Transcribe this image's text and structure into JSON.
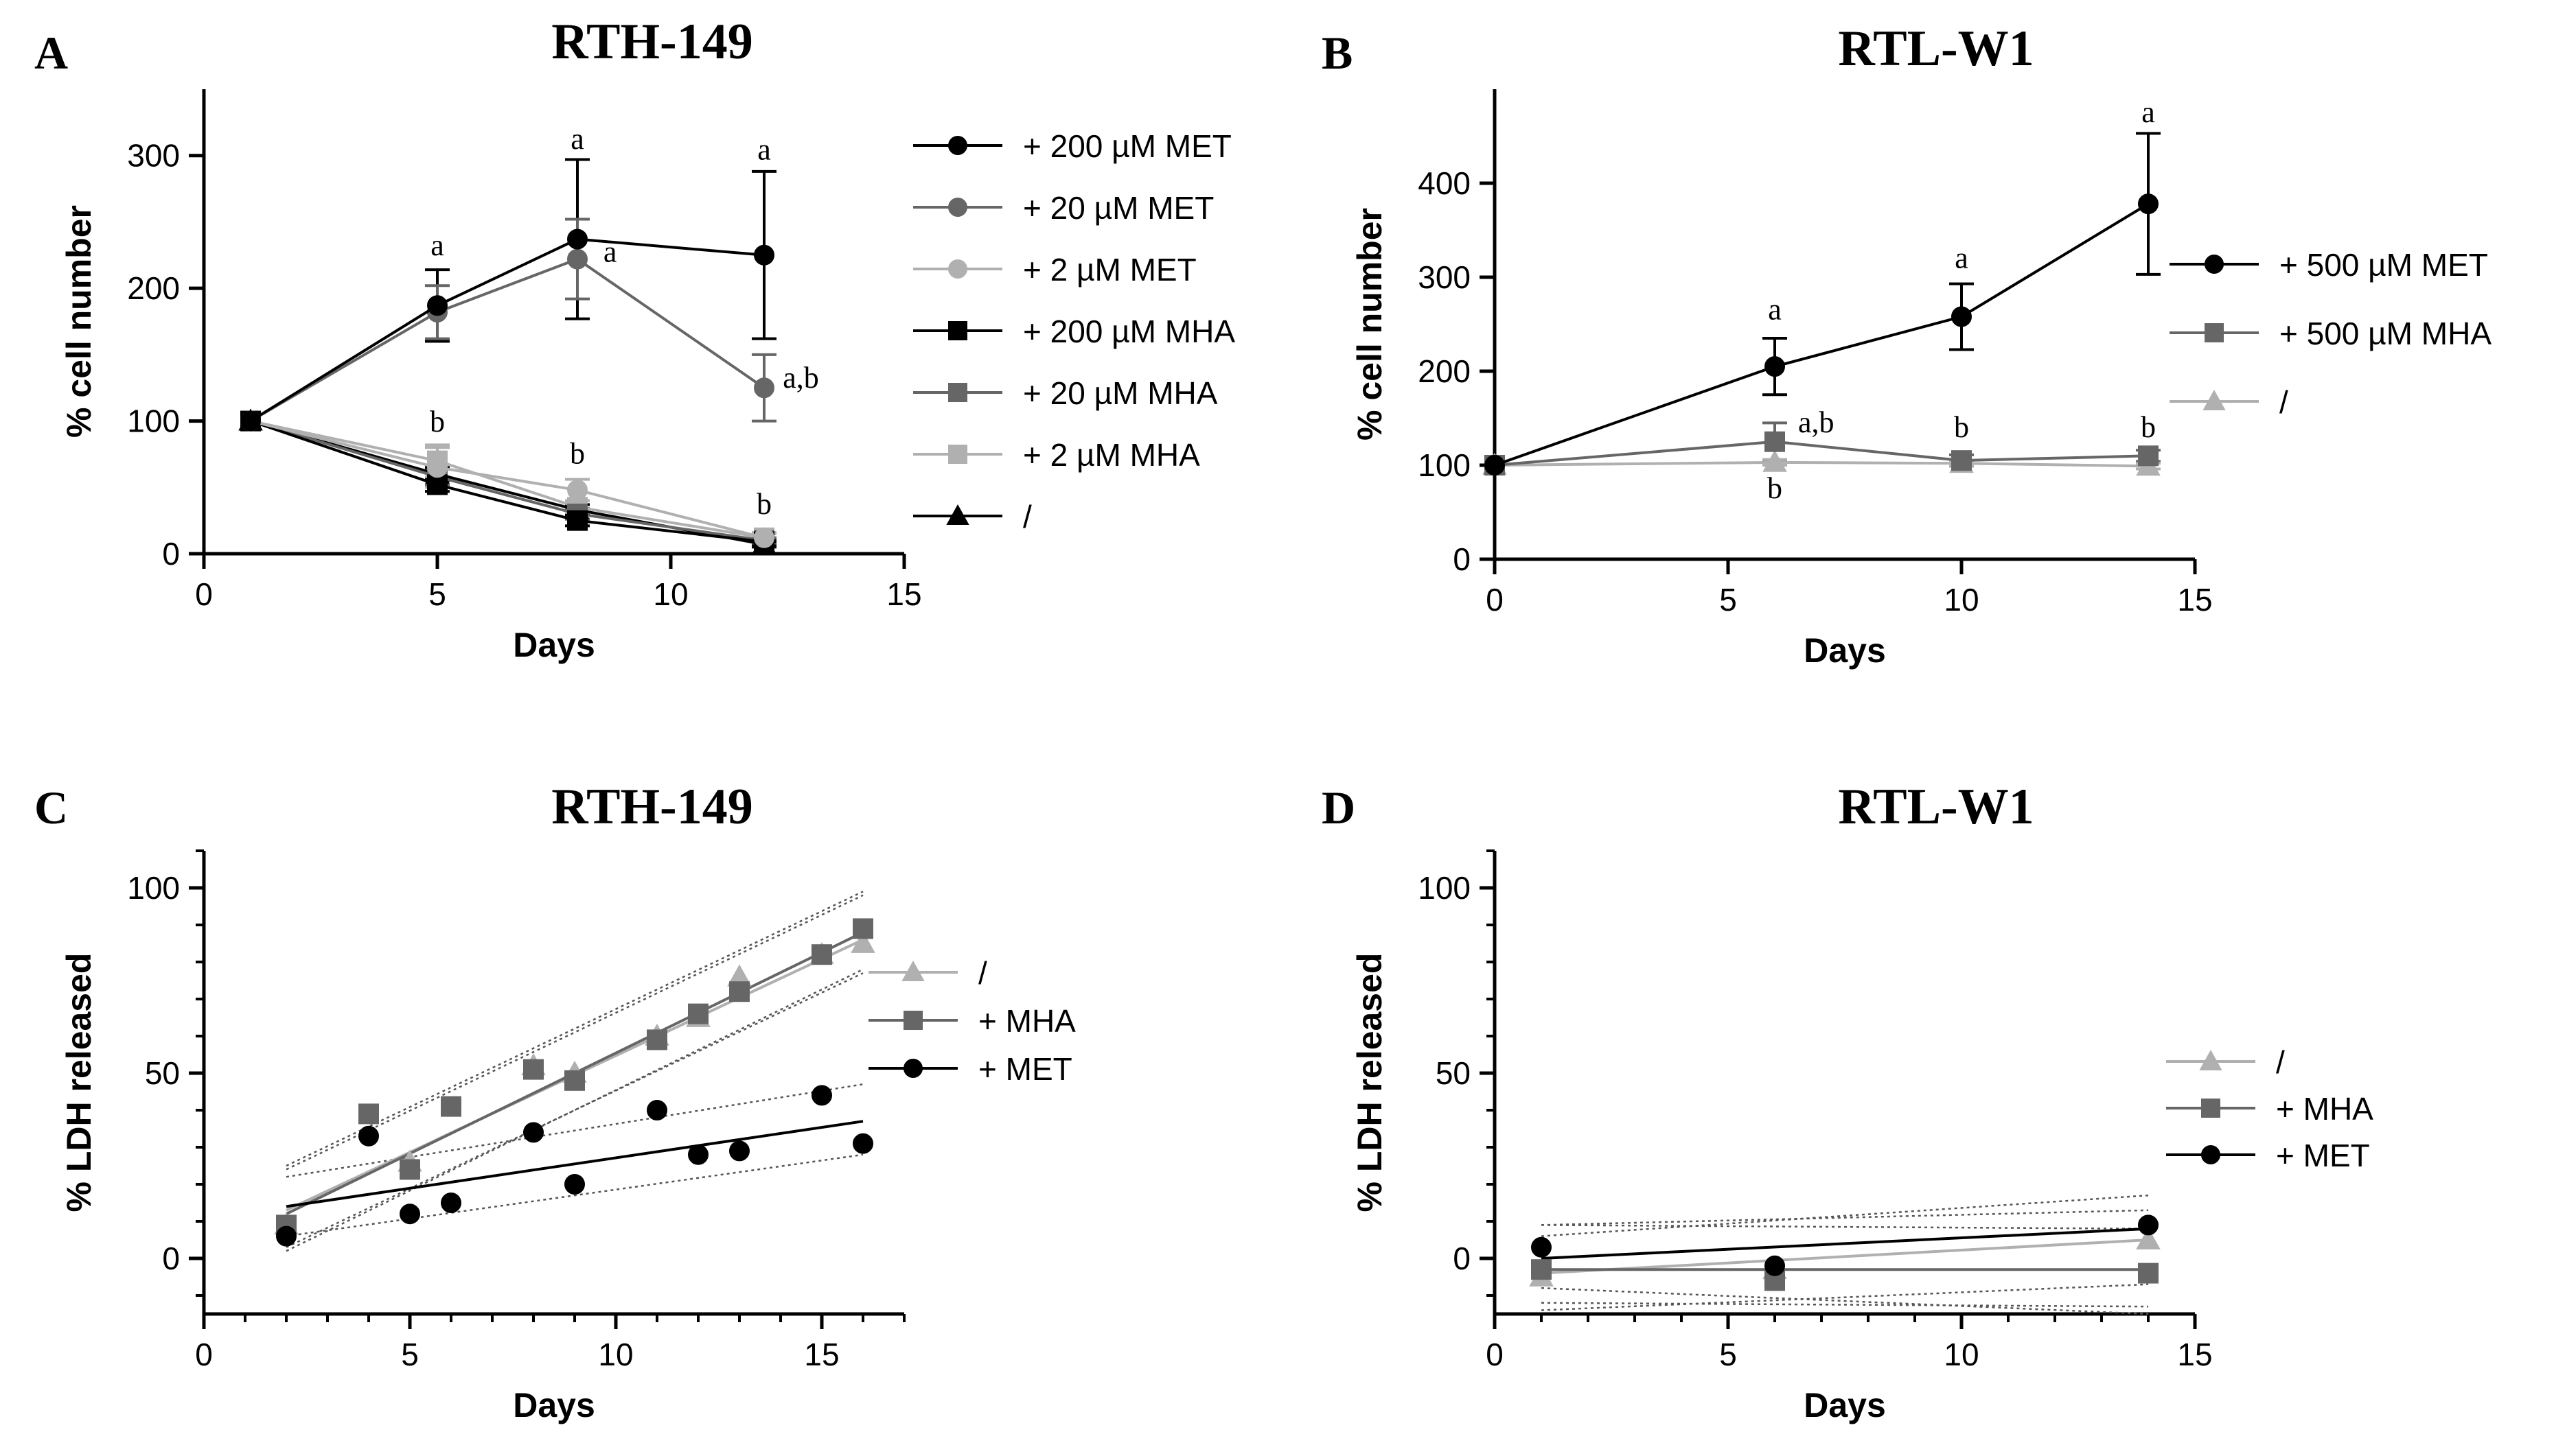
{
  "chart_data": [
    {
      "panel_label": "A",
      "title": "RTH-149",
      "type": "line",
      "xlabel": "Days",
      "ylabel": "% cell number",
      "xlim": [
        0,
        15
      ],
      "ylim": [
        0,
        350
      ],
      "xticks": [
        0,
        5,
        10,
        15
      ],
      "yticks": [
        0,
        100,
        200,
        300
      ],
      "legend_position": "right",
      "series": [
        {
          "name": "+ 200 µM MET",
          "color": "#000000",
          "marker": "circle",
          "x": [
            1,
            5,
            8,
            12
          ],
          "y": [
            100,
            187,
            237,
            225
          ],
          "err": [
            0,
            27,
            60,
            63
          ]
        },
        {
          "name": "+ 20 µM MET",
          "color": "#666666",
          "marker": "circle",
          "x": [
            1,
            5,
            8,
            12
          ],
          "y": [
            100,
            182,
            222,
            125
          ],
          "err": [
            0,
            20,
            30,
            25
          ]
        },
        {
          "name": "+ 2 µM MET",
          "color": "#b0b0b0",
          "marker": "circle",
          "x": [
            1,
            5,
            8,
            12
          ],
          "y": [
            100,
            65,
            48,
            12
          ],
          "err": [
            0,
            15,
            8,
            4
          ]
        },
        {
          "name": "+ 200 µM MHA",
          "color": "#000000",
          "marker": "square",
          "x": [
            1,
            5,
            8,
            12
          ],
          "y": [
            100,
            52,
            25,
            9
          ],
          "err": [
            0,
            5,
            4,
            2
          ]
        },
        {
          "name": "+ 20 µM MHA",
          "color": "#666666",
          "marker": "square",
          "x": [
            1,
            5,
            8,
            12
          ],
          "y": [
            100,
            58,
            30,
            10
          ],
          "err": [
            0,
            6,
            4,
            2
          ]
        },
        {
          "name": "+ 2 µM MHA",
          "color": "#b0b0b0",
          "marker": "square",
          "x": [
            1,
            5,
            8,
            12
          ],
          "y": [
            100,
            70,
            35,
            12
          ],
          "err": [
            0,
            12,
            5,
            3
          ]
        },
        {
          "name": "/",
          "color": "#000000",
          "marker": "triangle",
          "x": [
            1,
            5,
            8,
            12
          ],
          "y": [
            100,
            60,
            33,
            7
          ],
          "err": [
            0,
            5,
            4,
            2
          ]
        }
      ],
      "annotations": [
        {
          "text": "a",
          "x": 5,
          "y": 225,
          "anchor": "middle"
        },
        {
          "text": "a",
          "x": 8,
          "y": 305,
          "anchor": "middle"
        },
        {
          "text": "a",
          "x": 8.7,
          "y": 220,
          "anchor": "middle"
        },
        {
          "text": "a",
          "x": 12,
          "y": 297,
          "anchor": "middle"
        },
        {
          "text": "a,b",
          "x": 12.4,
          "y": 125,
          "anchor": "start"
        },
        {
          "text": "b",
          "x": 5,
          "y": 92,
          "anchor": "middle"
        },
        {
          "text": "b",
          "x": 8,
          "y": 68,
          "anchor": "middle"
        },
        {
          "text": "b",
          "x": 12,
          "y": 30,
          "anchor": "middle"
        }
      ]
    },
    {
      "panel_label": "B",
      "title": "RTL-W1",
      "type": "line",
      "xlabel": "Days",
      "ylabel": "% cell number",
      "xlim": [
        0,
        15
      ],
      "ylim": [
        0,
        500
      ],
      "xticks": [
        0,
        5,
        10,
        15
      ],
      "yticks": [
        0,
        100,
        200,
        300,
        400
      ],
      "legend_position": "right",
      "series": [
        {
          "name": "+ 500 µM MET",
          "color": "#000000",
          "marker": "circle",
          "x": [
            0,
            6,
            10,
            14
          ],
          "y": [
            100,
            205,
            258,
            378
          ],
          "err": [
            0,
            30,
            35,
            75
          ]
        },
        {
          "name": "+ 500 µM MHA",
          "color": "#666666",
          "marker": "square",
          "x": [
            0,
            6,
            10,
            14
          ],
          "y": [
            100,
            125,
            105,
            110
          ],
          "err": [
            0,
            20,
            6,
            6
          ]
        },
        {
          "name": "/",
          "color": "#b0b0b0",
          "marker": "triangle",
          "x": [
            0,
            6,
            10,
            14
          ],
          "y": [
            100,
            103,
            102,
            99
          ],
          "err": [
            0,
            3,
            3,
            3
          ]
        }
      ],
      "annotations": [
        {
          "text": "a",
          "x": 6,
          "y": 255,
          "anchor": "middle"
        },
        {
          "text": "a",
          "x": 10,
          "y": 310,
          "anchor": "middle"
        },
        {
          "text": "a",
          "x": 14,
          "y": 465,
          "anchor": "middle"
        },
        {
          "text": "a,b",
          "x": 6.5,
          "y": 135,
          "anchor": "start"
        },
        {
          "text": "b",
          "x": 6,
          "y": 65,
          "anchor": "middle"
        },
        {
          "text": "b",
          "x": 10,
          "y": 130,
          "anchor": "middle"
        },
        {
          "text": "b",
          "x": 14,
          "y": 130,
          "anchor": "middle"
        }
      ]
    },
    {
      "panel_label": "C",
      "title": "RTH-149",
      "type": "scatter",
      "xlabel": "Days",
      "ylabel": "% LDH released",
      "xlim": [
        0,
        17
      ],
      "ylim": [
        -15,
        110
      ],
      "xticks": [
        0,
        5,
        10,
        15
      ],
      "yticks": [
        0,
        50,
        100
      ],
      "legend_position": "right",
      "series": [
        {
          "name": "/",
          "color": "#b0b0b0",
          "marker": "triangle",
          "x": [
            2,
            5,
            8,
            9,
            11,
            12,
            13,
            15,
            16
          ],
          "y": [
            9,
            26,
            52,
            50,
            60,
            65,
            76,
            82,
            85
          ],
          "fit": [
            [
              2,
              13
            ],
            [
              16,
              86
            ]
          ],
          "band": {
            "upper": [
              [
                2,
                24
              ],
              [
                16,
                98
              ]
            ],
            "lower": [
              [
                2,
                3
              ],
              [
                16,
                77
              ]
            ]
          }
        },
        {
          "name": "+ MHA",
          "color": "#666666",
          "marker": "square",
          "x": [
            2,
            4,
            5,
            6,
            8,
            9,
            11,
            12,
            13,
            15,
            16
          ],
          "y": [
            9,
            39,
            24,
            41,
            51,
            48,
            59,
            66,
            72,
            82,
            89
          ],
          "fit": [
            [
              2,
              12
            ],
            [
              16,
              88
            ]
          ],
          "band": {
            "upper": [
              [
                2,
                25
              ],
              [
                16,
                99
              ]
            ],
            "lower": [
              [
                2,
                2
              ],
              [
                16,
                78
              ]
            ]
          }
        },
        {
          "name": "+ MET",
          "color": "#000000",
          "marker": "circle",
          "x": [
            2,
            4,
            5,
            6,
            8,
            9,
            11,
            12,
            13,
            15,
            16
          ],
          "y": [
            6,
            33,
            12,
            15,
            34,
            20,
            40,
            28,
            29,
            44,
            31
          ],
          "fit": [
            [
              2,
              14
            ],
            [
              16,
              37
            ]
          ],
          "band": {
            "upper": [
              [
                2,
                22
              ],
              [
                16,
                47
              ]
            ],
            "lower": [
              [
                2,
                6
              ],
              [
                16,
                28
              ]
            ]
          }
        }
      ]
    },
    {
      "panel_label": "D",
      "title": "RTL-W1",
      "type": "scatter",
      "xlabel": "Days",
      "ylabel": "% LDH released",
      "xlim": [
        0,
        15
      ],
      "ylim": [
        -15,
        110
      ],
      "xticks": [
        0,
        5,
        10,
        15
      ],
      "yticks": [
        0,
        50,
        100
      ],
      "legend_position": "right",
      "series": [
        {
          "name": "/",
          "color": "#b0b0b0",
          "marker": "triangle",
          "x": [
            1,
            6,
            14
          ],
          "y": [
            -5,
            -3,
            5
          ],
          "fit": [
            [
              1,
              -4
            ],
            [
              14,
              5
            ]
          ],
          "band": {
            "upper": [
              [
                1,
                6
              ],
              [
                14,
                17
              ]
            ],
            "lower": [
              [
                1,
                -14
              ],
              [
                14,
                -7
              ]
            ]
          }
        },
        {
          "name": "+ MHA",
          "color": "#666666",
          "marker": "square",
          "x": [
            1,
            6,
            14
          ],
          "y": [
            -3,
            -6,
            -4
          ],
          "fit": [
            [
              1,
              -3
            ],
            [
              14,
              -3
            ]
          ],
          "band": {
            "upper": [
              [
                1,
                9
              ],
              [
                14,
                8
              ]
            ],
            "lower": [
              [
                1,
                -12
              ],
              [
                14,
                -13
              ]
            ]
          }
        },
        {
          "name": "+ MET",
          "color": "#000000",
          "marker": "circle",
          "x": [
            1,
            6,
            14
          ],
          "y": [
            3,
            -2,
            9
          ],
          "fit": [
            [
              1,
              0
            ],
            [
              14,
              8
            ]
          ],
          "band": {
            "upper": [
              [
                1,
                9
              ],
              [
                14,
                13
              ]
            ],
            "lower": [
              [
                1,
                -8
              ],
              [
                14,
                -15
              ]
            ]
          }
        }
      ]
    }
  ]
}
